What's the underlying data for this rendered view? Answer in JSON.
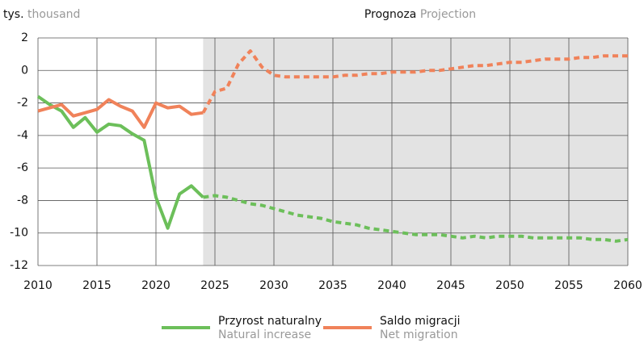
{
  "chart_data": {
    "type": "line",
    "y_label": "tys.",
    "y_label_en": "thousand",
    "annotation": "Prognoza",
    "annotation_en": "Projection",
    "projection_from": 2024,
    "x": [
      2010,
      2011,
      2012,
      2013,
      2014,
      2015,
      2016,
      2017,
      2018,
      2019,
      2020,
      2021,
      2022,
      2023,
      2024,
      2025,
      2026,
      2027,
      2028,
      2029,
      2030,
      2031,
      2032,
      2033,
      2034,
      2035,
      2036,
      2037,
      2038,
      2039,
      2040,
      2041,
      2042,
      2043,
      2044,
      2045,
      2046,
      2047,
      2048,
      2049,
      2050,
      2051,
      2052,
      2053,
      2054,
      2055,
      2056,
      2057,
      2058,
      2059,
      2060
    ],
    "series": [
      {
        "name": "Przyrost naturalny",
        "name_en": "Natural increase",
        "color": "#6cbf5a",
        "values": [
          -1.6,
          -2.1,
          -2.5,
          -3.5,
          -2.9,
          -3.8,
          -3.3,
          -3.4,
          -3.9,
          -4.3,
          -7.8,
          -9.7,
          -7.6,
          -7.1,
          -7.8,
          -7.7,
          -7.8,
          -8.0,
          -8.2,
          -8.3,
          -8.5,
          -8.7,
          -8.9,
          -9.0,
          -9.1,
          -9.3,
          -9.4,
          -9.5,
          -9.7,
          -9.8,
          -9.9,
          -10.0,
          -10.1,
          -10.1,
          -10.1,
          -10.2,
          -10.3,
          -10.2,
          -10.3,
          -10.2,
          -10.2,
          -10.2,
          -10.3,
          -10.3,
          -10.3,
          -10.3,
          -10.3,
          -10.4,
          -10.4,
          -10.5,
          -10.4
        ]
      },
      {
        "name": "Saldo migracji",
        "name_en": "Net migration",
        "color": "#f0825a",
        "values": [
          -2.5,
          -2.3,
          -2.1,
          -2.8,
          -2.6,
          -2.4,
          -1.8,
          -2.2,
          -2.5,
          -3.5,
          -2.0,
          -2.3,
          -2.2,
          -2.7,
          -2.6,
          -1.3,
          -1.1,
          0.4,
          1.2,
          0.2,
          -0.3,
          -0.4,
          -0.4,
          -0.4,
          -0.4,
          -0.4,
          -0.3,
          -0.3,
          -0.2,
          -0.2,
          -0.1,
          -0.1,
          -0.1,
          0.0,
          0.0,
          0.1,
          0.2,
          0.3,
          0.3,
          0.4,
          0.5,
          0.5,
          0.6,
          0.7,
          0.7,
          0.7,
          0.8,
          0.8,
          0.9,
          0.9,
          0.9
        ]
      }
    ],
    "xlim": [
      2010,
      2060
    ],
    "xticks": [
      2010,
      2015,
      2020,
      2025,
      2030,
      2035,
      2040,
      2045,
      2050,
      2055,
      2060
    ],
    "ylim": [
      -12,
      2
    ],
    "yticks": [
      2,
      0,
      -2,
      -4,
      -6,
      -8,
      -10,
      -12
    ],
    "grid": true
  }
}
